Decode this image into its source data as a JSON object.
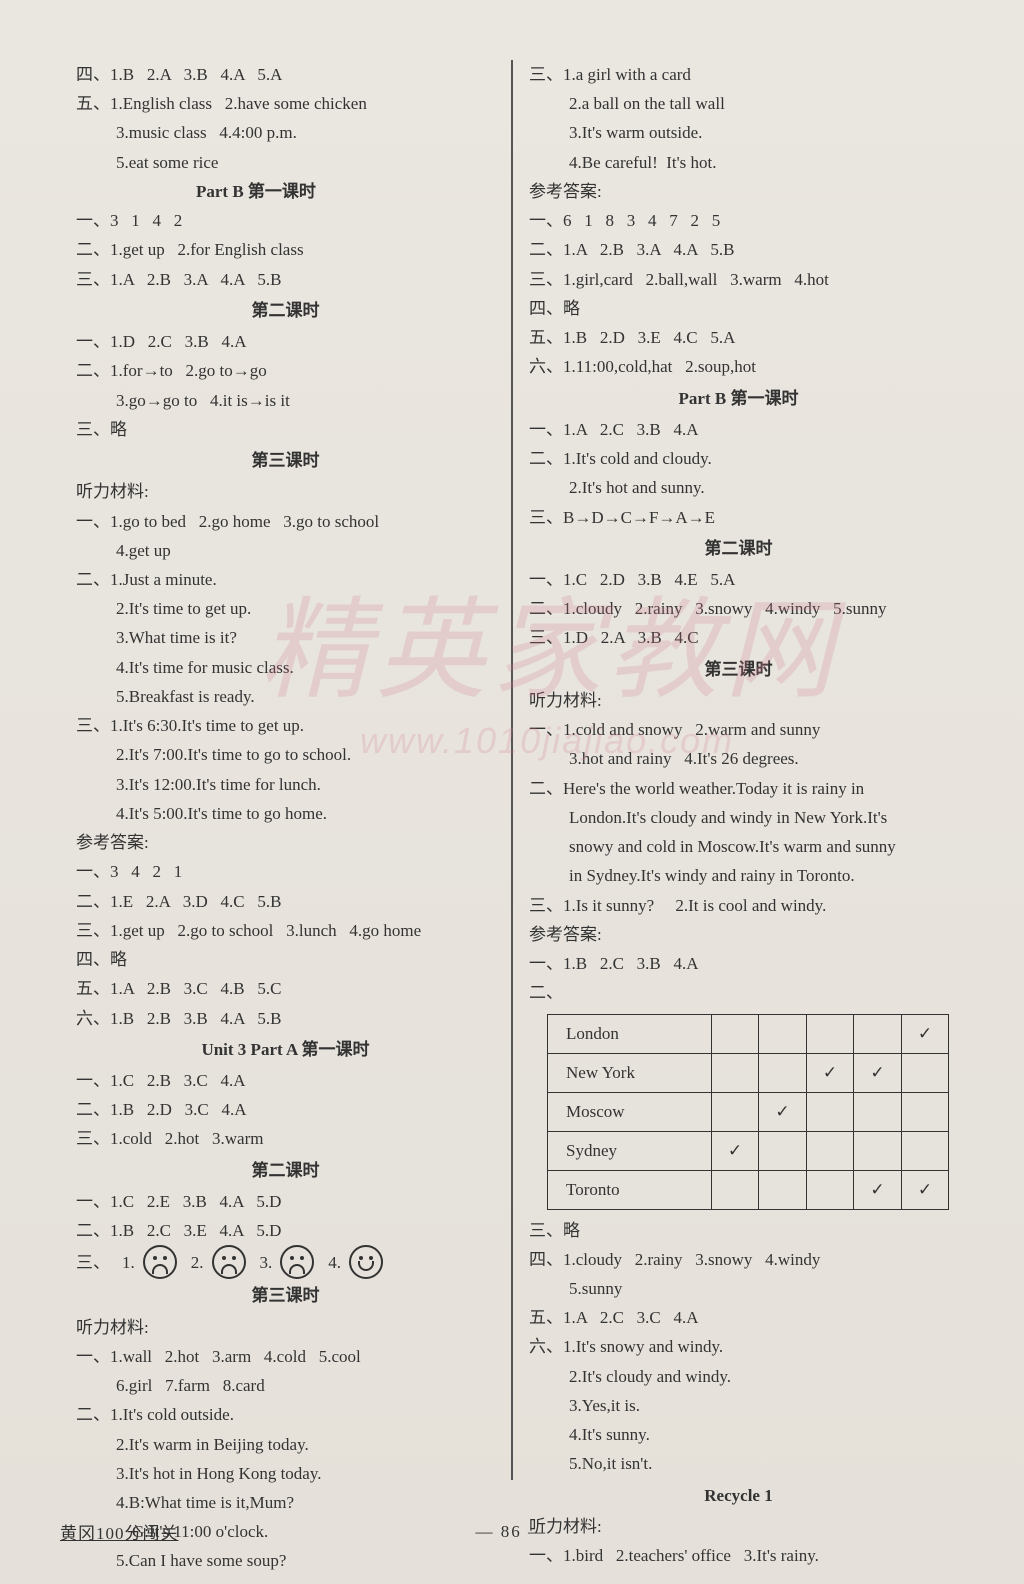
{
  "watermark": {
    "main": "精英家教网",
    "sub": "www.1010jiajiao.com"
  },
  "footer": {
    "title": "黄冈100分闯关",
    "page": "— 86 —"
  },
  "left": {
    "l1": "四、1.B   2.A   3.B   4.A   5.A",
    "l2": "五、1.English class   2.have some chicken",
    "l3": "3.music class   4.4:00 p.m.",
    "l4": "5.eat some rice",
    "h1": "Part B    第一课时",
    "l5": "一、3   1   4   2",
    "l6": "二、1.get up   2.for English class",
    "l7": "三、1.A   2.B   3.A   4.A   5.B",
    "h2": "第二课时",
    "l8": "一、1.D   2.C   3.B   4.A",
    "l9": "二、1.for→to   2.go to→go",
    "l10": "3.go→go to   4.it is→is it",
    "l11": "三、略",
    "h3": "第三课时",
    "l12": "听力材料:",
    "l13": "一、1.go to bed   2.go home   3.go to school",
    "l14": "4.get up",
    "l15": "二、1.Just a minute.",
    "l16": "2.It's time to get up.",
    "l17": "3.What time is it?",
    "l18": "4.It's time for music class.",
    "l19": "5.Breakfast is ready.",
    "l20": "三、1.It's 6:30.It's time to get up.",
    "l21": "2.It's 7:00.It's time to go to school.",
    "l22": "3.It's 12:00.It's time for lunch.",
    "l23": "4.It's 5:00.It's time to go home.",
    "l24": "参考答案:",
    "l25": "一、3   4   2   1",
    "l26": "二、1.E   2.A   3.D   4.C   5.B",
    "l27": "三、1.get up   2.go to school   3.lunch   4.go home",
    "l28": "四、略",
    "l29": "五、1.A   2.B   3.C   4.B   5.C",
    "l30": "六、1.B   2.B   3.B   4.A   5.B",
    "h4": "Unit 3    Part A    第一课时",
    "l31": "一、1.C   2.B   3.C   4.A",
    "l32": "二、1.B   2.D   3.C   4.A",
    "l33": "三、1.cold   2.hot   3.warm",
    "h5": "第二课时",
    "l34": "一、1.C   2.E   3.B   4.A   5.D",
    "l35": "二、1.B   2.C   3.E   4.A   5.D",
    "faces": {
      "prefix": "三、",
      "items": [
        "1.",
        "2.",
        "3.",
        "4."
      ],
      "moods": [
        "sad",
        "sad",
        "sad",
        "happy"
      ]
    },
    "h6": "第三课时",
    "l36": "听力材料:",
    "l37": "一、1.wall   2.hot   3.arm   4.cold   5.cool",
    "l38": "6.girl   7.farm   8.card",
    "l39": "二、1.It's cold outside.",
    "l40": "2.It's warm in Beijing today.",
    "l41": "3.It's hot in Hong Kong today.",
    "l42": "4.B:What time is it,Mum?",
    "l43": "G:It's 11:00 o'clock.",
    "l44": "5.Can I have some soup?"
  },
  "right": {
    "r1": "三、1.a girl with a card",
    "r2": "2.a ball on the tall wall",
    "r3": "3.It's warm outside.",
    "r4": "4.Be careful!  It's hot.",
    "r5": "参考答案:",
    "r6": "一、6   1   8   3   4   7   2   5",
    "r7": "二、1.A   2.B   3.A   4.A   5.B",
    "r8": "三、1.girl,card   2.ball,wall   3.warm   4.hot",
    "r9": "四、略",
    "r10": "五、1.B   2.D   3.E   4.C   5.A",
    "r11": "六、1.11:00,cold,hat   2.soup,hot",
    "h1": "Part B    第一课时",
    "r12": "一、1.A   2.C   3.B   4.A",
    "r13": "二、1.It's cold and cloudy.",
    "r14": "2.It's hot and sunny.",
    "r15": "三、B→D→C→F→A→E",
    "h2": "第二课时",
    "r16": "一、1.C   2.D   3.B   4.E   5.A",
    "r17": "二、1.cloudy   2.rainy   3.snowy   4.windy   5.sunny",
    "r18": "三、1.D   2.A   3.B   4.C",
    "h3": "第三课时",
    "r19": "听力材料:",
    "r20": "一、1.cold and snowy   2.warm and sunny",
    "r21": "3.hot and rainy   4.It's 26 degrees.",
    "r22": "二、Here's the world weather.Today it is rainy in",
    "r23": "London.It's cloudy and windy in New York.It's",
    "r24": "snowy and cold in Moscow.It's warm and sunny",
    "r25": "in Sydney.It's windy and rainy in Toronto.",
    "r26": "三、1.Is it sunny?     2.It is cool and windy.",
    "r27": "参考答案:",
    "r28": "一、1.B   2.C   3.B   4.A",
    "r29": "二、",
    "table": {
      "rows": [
        {
          "city": "London",
          "cells": [
            "",
            "",
            "",
            "",
            "✓"
          ]
        },
        {
          "city": "New York",
          "cells": [
            "",
            "",
            "✓",
            "✓",
            ""
          ]
        },
        {
          "city": "Moscow",
          "cells": [
            "",
            "✓",
            "",
            "",
            ""
          ]
        },
        {
          "city": "Sydney",
          "cells": [
            "✓",
            "",
            "",
            "",
            ""
          ]
        },
        {
          "city": "Toronto",
          "cells": [
            "",
            "",
            "",
            "✓",
            "✓"
          ]
        }
      ]
    },
    "r30": "三、略",
    "r31": "四、1.cloudy   2.rainy   3.snowy   4.windy",
    "r32": "5.sunny",
    "r33": "五、1.A   2.C   3.C   4.A",
    "r34": "六、1.It's snowy and windy.",
    "r35": "2.It's cloudy and windy.",
    "r36": "3.Yes,it is.",
    "r37": "4.It's sunny.",
    "r38": "5.No,it isn't.",
    "h4": "Recycle 1",
    "r39": "听力材料:",
    "r40": "一、1.bird   2.teachers' office   3.It's rainy."
  }
}
